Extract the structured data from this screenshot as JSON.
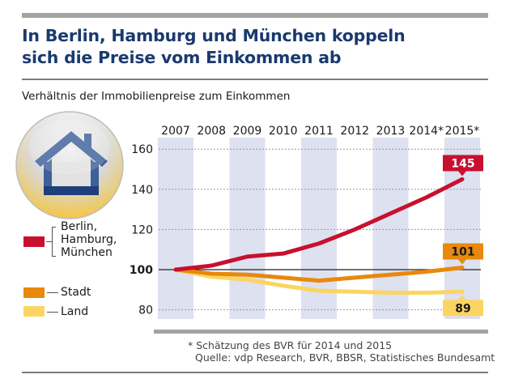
{
  "header": {
    "title_line1": "In Berlin, Hamburg und München koppeln",
    "title_line2": "sich die Preise vom Einkommen ab",
    "subtitle": "Verhältnis der Immobilienpreise zum Einkommen"
  },
  "icon": {
    "name": "house-icon"
  },
  "legend": {
    "items": [
      {
        "label_lines": [
          "Berlin,",
          "Hamburg,",
          "München"
        ],
        "color": "#c8102e"
      },
      {
        "label_lines": [
          "Stadt"
        ],
        "color": "#e8890c"
      },
      {
        "label_lines": [
          "Land"
        ],
        "color": "#fbd561"
      }
    ]
  },
  "footer": {
    "note": "* Schätzung des BVR für 2014 und 2015",
    "source": "Quelle: vdp Research, BVR, BBSR, Statistisches Bundesamt"
  },
  "colors": {
    "title": "#1a3a6e",
    "column_shade": "#dde1f0",
    "red": "#c8102e",
    "orange": "#e8890c",
    "yellow": "#fbd561"
  },
  "chart_data": {
    "type": "line",
    "title": "In Berlin, Hamburg und München koppeln sich die Preise vom Einkommen ab",
    "subtitle": "Verhältnis der Immobilienpreise zum Einkommen",
    "xlabel": "",
    "ylabel": "",
    "categories": [
      "2007",
      "2008",
      "2009",
      "2010",
      "2011",
      "2012",
      "2013",
      "2014*",
      "2015*"
    ],
    "yticks": [
      80,
      100,
      120,
      140,
      160
    ],
    "ylim": [
      76,
      166
    ],
    "baseline": 100,
    "grid": "horizontal dotted",
    "shaded_columns": [
      "2007",
      "2009",
      "2011",
      "2013",
      "2015*"
    ],
    "legend_position": "left",
    "series": [
      {
        "name": "Berlin, Hamburg, München",
        "values": [
          100,
          102,
          106.5,
          108,
          113,
          120,
          128,
          136,
          145
        ],
        "end_label": "145"
      },
      {
        "name": "Stadt",
        "values": [
          100,
          98,
          97.5,
          96,
          94.5,
          96,
          97.5,
          99,
          101
        ],
        "end_label": "101"
      },
      {
        "name": "Land",
        "values": [
          100,
          96.5,
          95,
          92,
          89.5,
          89,
          88.5,
          88.5,
          89
        ],
        "end_label": "89"
      }
    ]
  }
}
